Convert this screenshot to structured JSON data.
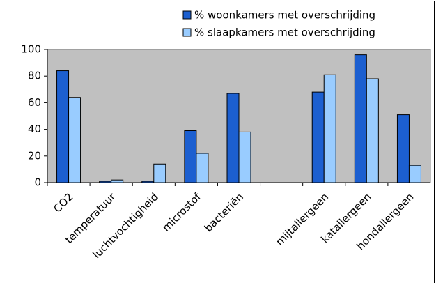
{
  "chart_data": {
    "type": "bar",
    "categories": [
      "CO2",
      "temperatuur",
      "luchtvochtigheid",
      "microstof",
      "bacteriën",
      null,
      "mijtallergeen",
      "katallergeen",
      "hondallergeen"
    ],
    "series": [
      {
        "name": "% woonkamers met overschrijding",
        "color": "#1c5fd0",
        "values": [
          84,
          1,
          1,
          39,
          67,
          null,
          68,
          96,
          51
        ]
      },
      {
        "name": "% slaapkamers met overschrijding",
        "color": "#99ccff",
        "values": [
          64,
          2,
          14,
          22,
          38,
          null,
          81,
          78,
          13
        ]
      }
    ],
    "ylim": [
      0,
      100
    ],
    "yticks": [
      0,
      20,
      40,
      60,
      80,
      100
    ],
    "legend": "top",
    "plot_background": "#c0c0c0"
  }
}
